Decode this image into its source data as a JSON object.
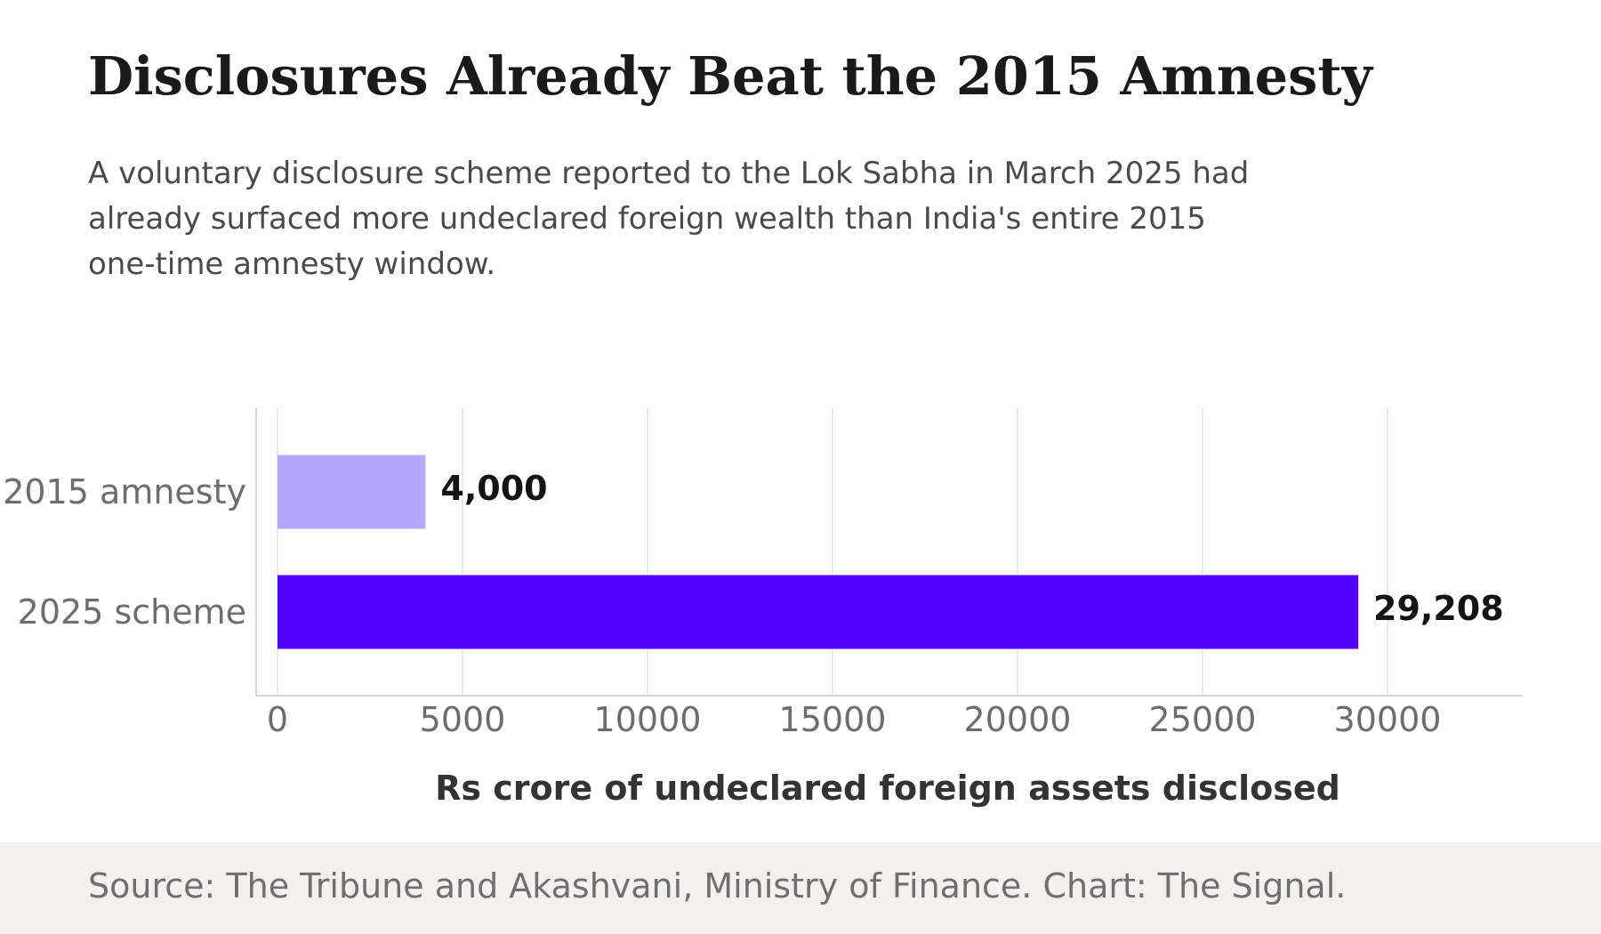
{
  "header": {
    "title": "Disclosures Already Beat the 2015 Amnesty",
    "subtitle": "A voluntary disclosure scheme reported to the Lok Sabha in March 2025 had already surfaced more undeclared foreign wealth than India's entire 2015 one-time amnesty window."
  },
  "footer": {
    "source": "Source: The Tribune and Akashvani, Ministry of Finance. Chart: The Signal."
  },
  "chart_data": {
    "type": "bar",
    "orientation": "horizontal",
    "categories": [
      "2015 amnesty",
      "2025 scheme"
    ],
    "values": [
      4000,
      29208
    ],
    "value_labels": [
      "4,000",
      "29,208"
    ],
    "colors": [
      "#b5a8fc",
      "#5200ff"
    ],
    "xlabel": "Rs crore of undeclared foreign assets disclosed",
    "ylabel": "",
    "xlim": [
      0,
      30000
    ],
    "xticks": [
      0,
      5000,
      10000,
      15000,
      20000,
      25000,
      30000
    ],
    "xtick_labels": [
      "0",
      "5000",
      "10000",
      "15000",
      "20000",
      "25000",
      "30000"
    ],
    "grid": "vertical"
  }
}
